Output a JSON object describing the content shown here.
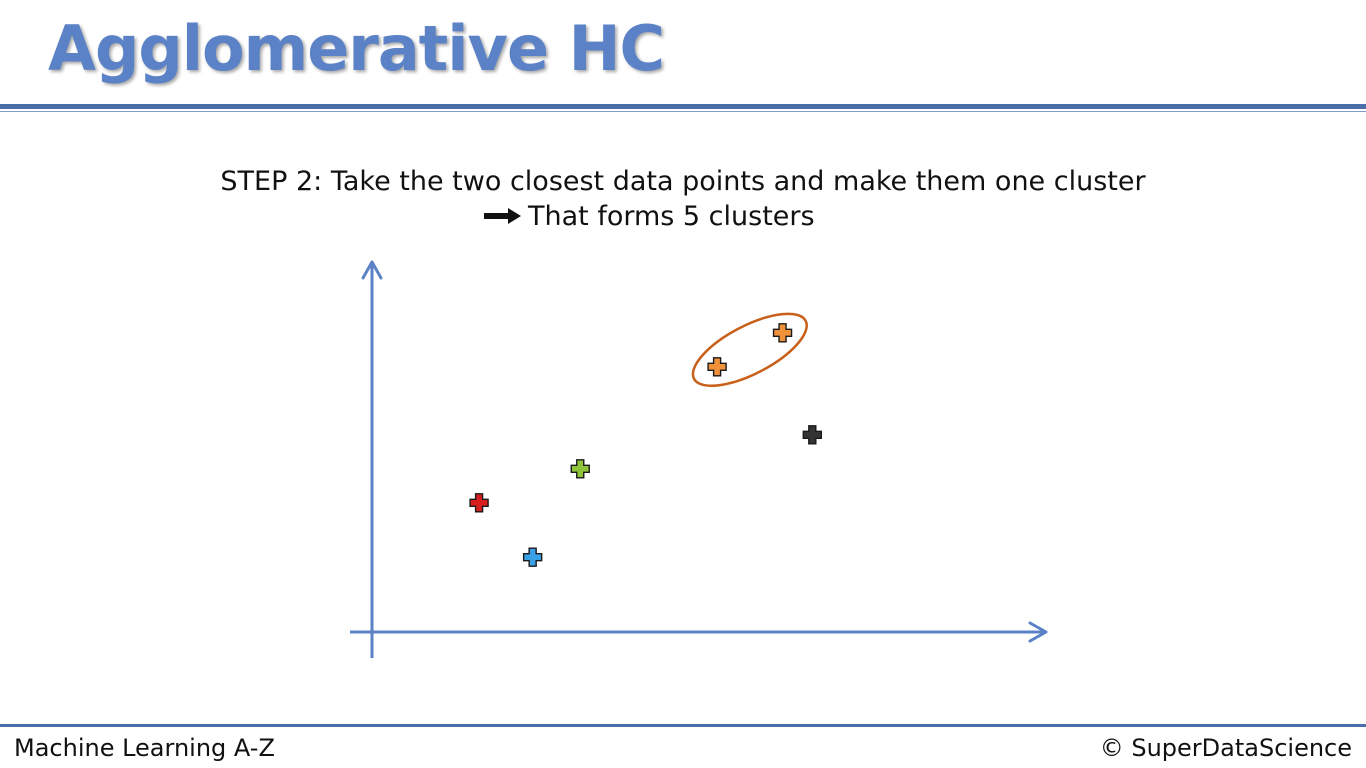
{
  "slide": {
    "title": "Agglomerative HC",
    "step_label": "STEP 2",
    "step_separator": ":",
    "step_text": " Take the two closest data points and make them one cluster",
    "result_text": "That forms 5 clusters",
    "footer_left": "Machine Learning A-Z",
    "footer_right": "© SuperDataScience"
  },
  "colors": {
    "title": "#5b82c6",
    "axis": "#5b82c6",
    "cluster_outline": "#c8601a"
  },
  "chart_data": {
    "type": "scatter",
    "grid": false,
    "axes": "arrows",
    "points": [
      {
        "id": "red",
        "x": 1.8,
        "y": 3.8,
        "color": "#d81e1e"
      },
      {
        "id": "blue",
        "x": 2.7,
        "y": 2.2,
        "color": "#3aa0e8"
      },
      {
        "id": "green",
        "x": 3.5,
        "y": 4.8,
        "color": "#8fc43a"
      },
      {
        "id": "orange-a",
        "x": 5.8,
        "y": 7.8,
        "color": "#f0923a"
      },
      {
        "id": "orange-b",
        "x": 6.9,
        "y": 8.8,
        "color": "#f0923a"
      },
      {
        "id": "black",
        "x": 7.4,
        "y": 5.8,
        "color": "#333333"
      }
    ],
    "clusters_highlighted": [
      [
        "orange-a",
        "orange-b"
      ]
    ]
  }
}
